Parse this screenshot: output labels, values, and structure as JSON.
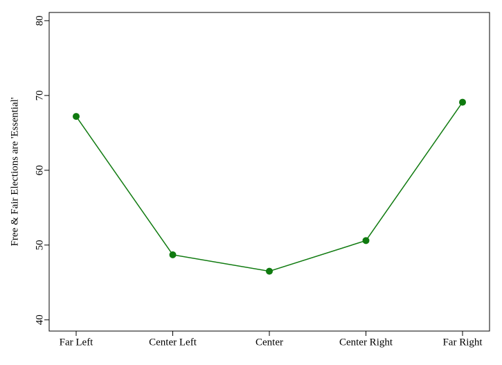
{
  "chart_data": {
    "type": "line",
    "y_label": "Free & Fair Elections are 'Essential'",
    "categories": [
      "Far Left",
      "Center Left",
      "Center",
      "Center Right",
      "Far Right"
    ],
    "series": [
      {
        "color": "#0f7a0f",
        "values": [
          67.2,
          48.7,
          46.5,
          50.6,
          69.1
        ]
      }
    ],
    "ylim": [
      38.5,
      81.1
    ],
    "yticks": [
      40,
      50,
      60,
      70,
      80
    ],
    "grid": false
  }
}
